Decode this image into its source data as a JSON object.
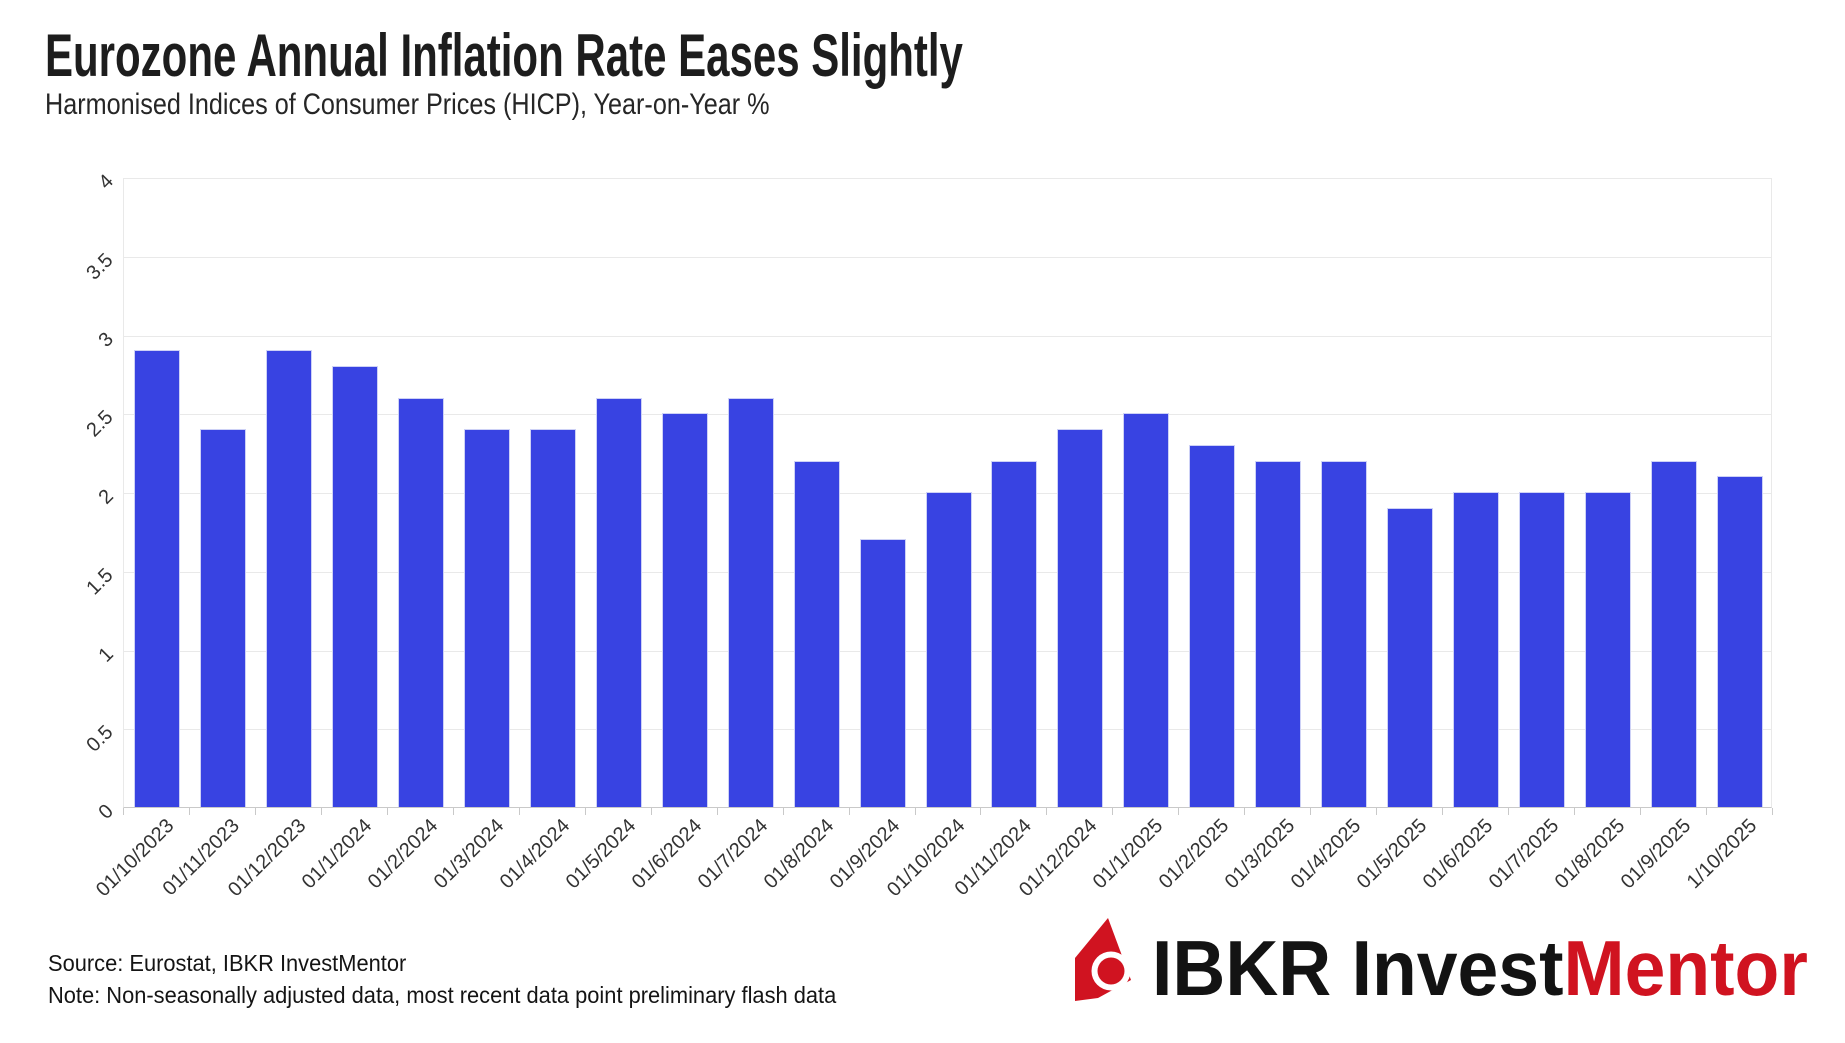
{
  "page": {
    "background": "#ffffff"
  },
  "header": {
    "title": "Eurozone Annual Inflation Rate Eases Slightly",
    "subtitle": "Harmonised Indices of Consumer Prices (HICP), Year-on-Year %"
  },
  "footer": {
    "source_line": "Source: Eurostat, IBKR InvestMentor",
    "note_line": "Note: Non-seasonally adjusted data, most recent data point preliminary flash data"
  },
  "logo": {
    "mark_icon": "ibkr-logo-mark",
    "text_black": "IBKR Invest",
    "text_red": "Mentor",
    "red_color": "#D01320",
    "black_color": "#131313"
  },
  "chart_data": {
    "type": "bar",
    "title": "Eurozone Annual Inflation Rate Eases Slightly",
    "subtitle": "Harmonised Indices of Consumer Prices (HICP), Year-on-Year %",
    "unit": "%",
    "categories": [
      "01/10/2023",
      "01/11/2023",
      "01/12/2023",
      "01/1/2024",
      "01/2/2024",
      "01/3/2024",
      "01/4/2024",
      "01/5/2024",
      "01/6/2024",
      "01/7/2024",
      "01/8/2024",
      "01/9/2024",
      "01/10/2024",
      "01/11/2024",
      "01/12/2024",
      "01/1/2025",
      "01/2/2025",
      "01/3/2025",
      "01/4/2025",
      "01/5/2025",
      "01/6/2025",
      "01/7/2025",
      "01/8/2025",
      "01/9/2025",
      "1/10/2025"
    ],
    "values": [
      2.9,
      2.4,
      2.9,
      2.8,
      2.6,
      2.4,
      2.4,
      2.6,
      2.5,
      2.6,
      2.2,
      1.7,
      2.0,
      2.2,
      2.4,
      2.5,
      2.3,
      2.2,
      2.2,
      1.9,
      2.0,
      2.0,
      2.0,
      2.2,
      2.1
    ],
    "ylim": [
      0,
      4
    ],
    "ytick_step": 0.5,
    "ytick_labels": [
      "0",
      "0.5",
      "1",
      "1.5",
      "2",
      "2.5",
      "3",
      "3.5",
      "4"
    ],
    "xlabel": "",
    "ylabel": "",
    "grid": true,
    "legend_position": "none",
    "bar_color": "#3843E2",
    "bar_edge_color": "#cdd1f6",
    "grid_color": "#e9e9e9",
    "axis_line_color": "#c9c9c9",
    "tick_label_color": "#333333"
  }
}
